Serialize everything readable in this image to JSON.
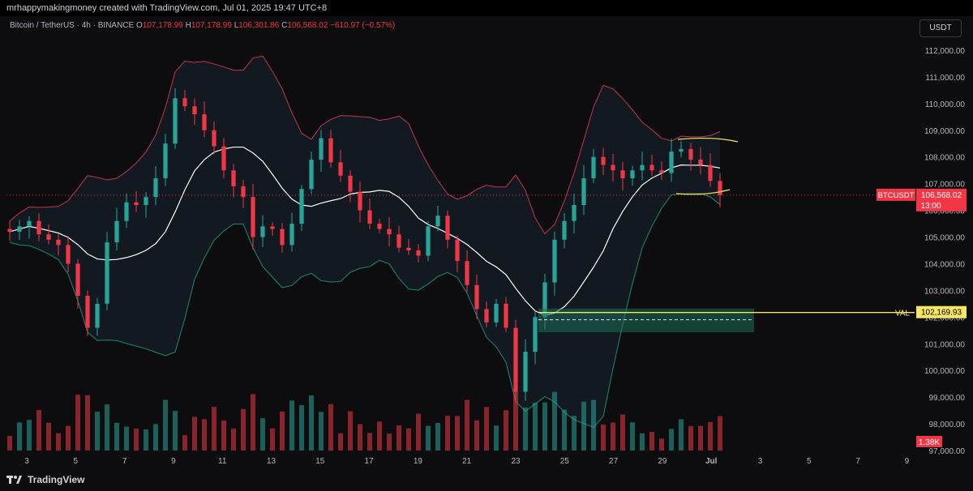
{
  "header": {
    "attribution": "mrhappymakingmoney created with TradingView.com, Jul 01, 2025 19:47 UTC+8"
  },
  "legend": {
    "symbol": "Bitcoin / TetherUS · 4h · BINANCE",
    "o_label": "O",
    "o_value": "107,178.99",
    "h_label": "H",
    "h_value": "107,178.99",
    "l_label": "L",
    "l_value": "106,301.86",
    "c_label": "C",
    "c_value": "106,568.02",
    "change": "−610.97 (−0.57%)"
  },
  "currency_button": "USDT",
  "footer": {
    "brand": "TradingView"
  },
  "colors": {
    "up": "#26a69a",
    "down": "#f23645",
    "upper_band": "#c2364a",
    "lower_band": "#1e8a6e",
    "basis": "#ffffff",
    "band_fill": "#1a2530",
    "val": "#f5e663",
    "zone": "#1c6f5a"
  },
  "chart_data": {
    "type": "candlestick",
    "symbol": "BTCUSDT",
    "timeframe": "4h",
    "ylim": [
      97000,
      112000
    ],
    "y_ticks": [
      "112,000.00",
      "111,000.00",
      "110,000.00",
      "109,000.00",
      "108,000.00",
      "107,000.00",
      "106,000.00",
      "105,000.00",
      "104,000.00",
      "103,000.00",
      "102,000.00",
      "101,000.00",
      "100,000.00",
      "99,000.00",
      "98,000.00",
      "97,000.00"
    ],
    "x_ticks": [
      "3",
      "5",
      "7",
      "9",
      "11",
      "13",
      "15",
      "17",
      "19",
      "21",
      "23",
      "25",
      "27",
      "29",
      "Jul",
      "3",
      "5",
      "7",
      "9"
    ],
    "last_price_label": "BTCUSDT",
    "last_price": "106,568.02",
    "countdown": "13:00",
    "val_label": "VAL",
    "val_price": "102,169.93",
    "volume_label": "1.38K",
    "close_path": [
      105200,
      105400,
      105600,
      105100,
      104900,
      104700,
      104000,
      102800,
      101600,
      102500,
      104800,
      105600,
      106300,
      106200,
      106500,
      107200,
      108500,
      110200,
      109900,
      109600,
      109000,
      108400,
      107500,
      106900,
      106500,
      105000,
      105400,
      105300,
      104700,
      105500,
      106800,
      107900,
      108700,
      107800,
      107300,
      106700,
      106000,
      105500,
      105300,
      105100,
      104600,
      104500,
      104300,
      105400,
      105800,
      104900,
      104100,
      103200,
      102300,
      101800,
      102500,
      101600,
      99200,
      100700,
      102000,
      103300,
      104900,
      105600,
      106200,
      107200,
      108000,
      107700,
      107500,
      107200,
      107500,
      107700,
      107500,
      107400,
      108200,
      108300,
      107900,
      107700,
      107100,
      106568
    ]
  }
}
